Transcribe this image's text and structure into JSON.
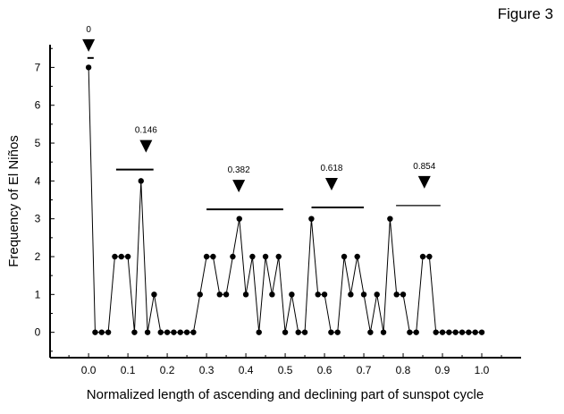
{
  "figure_label": "Figure 3",
  "chart_data": {
    "type": "line",
    "title": "",
    "xlabel": "Normalized length of ascending and declining part of sunspot cycle",
    "ylabel": "Frequency of El Niños",
    "xlim": [
      -0.098,
      1.1
    ],
    "ylim": [
      -0.67,
      7.6
    ],
    "xticks": [
      "0.0",
      "0.1",
      "0.2",
      "0.3",
      "0.4",
      "0.5",
      "0.6",
      "0.7",
      "0.8",
      "0.9",
      "1.0"
    ],
    "yticks": [
      "0",
      "1",
      "2",
      "3",
      "4",
      "5",
      "6",
      "7"
    ],
    "x_step": 0.016667,
    "values": [
      7,
      0,
      0,
      0,
      2,
      2,
      2,
      0,
      4,
      0,
      1,
      0,
      0,
      0,
      0,
      0,
      0,
      1,
      2,
      2,
      1,
      1,
      2,
      3,
      1,
      2,
      0,
      2,
      1,
      2,
      0,
      1,
      0,
      0,
      3,
      1,
      1,
      0,
      0,
      2,
      1,
      2,
      1,
      0,
      1,
      0,
      3,
      1,
      1,
      0,
      0,
      2,
      2,
      0,
      0,
      0,
      0,
      0,
      0,
      0,
      0
    ],
    "markers": [
      {
        "label": "0",
        "x": 0.0,
        "bar": [
          -0.003,
          0.013
        ],
        "bar_y": 7.25
      },
      {
        "label": "0.146",
        "x": 0.146,
        "bar": [
          0.07,
          0.165
        ],
        "bar_y": 4.3
      },
      {
        "label": "0.382",
        "x": 0.382,
        "bar": [
          0.3,
          0.495
        ],
        "bar_y": 3.25
      },
      {
        "label": "0.618",
        "x": 0.618,
        "bar": [
          0.567,
          0.7
        ],
        "bar_y": 3.3
      },
      {
        "label": "0.854",
        "x": 0.854,
        "bar": [
          0.782,
          0.895
        ],
        "bar_y": 3.35
      }
    ],
    "grid": false,
    "legend": "none"
  }
}
